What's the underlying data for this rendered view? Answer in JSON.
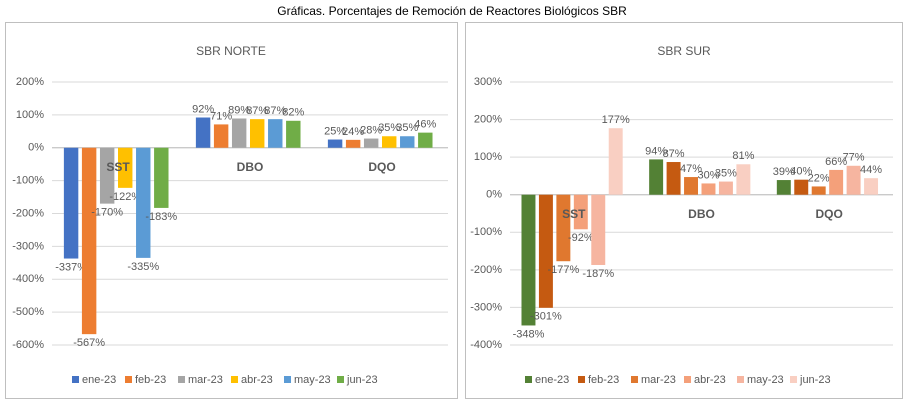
{
  "title": "Gráficas. Porcentajes de Remoción de Reactores Biológicos SBR",
  "chart_data": [
    {
      "type": "bar",
      "title": "SBR NORTE",
      "categories": [
        "SST",
        "DBO",
        "DQO"
      ],
      "series": [
        {
          "name": "ene-23",
          "color": "#4472c4",
          "values": [
            -337,
            92,
            25
          ],
          "value_labels": [
            "-337%",
            "92%",
            "25%"
          ]
        },
        {
          "name": "feb-23",
          "color": "#ed7d31",
          "values": [
            -567,
            71,
            24
          ],
          "value_labels": [
            "-567%",
            "71%",
            "24%"
          ]
        },
        {
          "name": "mar-23",
          "color": "#a5a5a5",
          "values": [
            -170,
            89,
            28
          ],
          "value_labels": [
            "-170%",
            "89%",
            "28%"
          ]
        },
        {
          "name": "abr-23",
          "color": "#ffc000",
          "values": [
            -122,
            87,
            35
          ],
          "value_labels": [
            "-122%",
            "87%",
            "35%"
          ]
        },
        {
          "name": "may-23",
          "color": "#5b9bd5",
          "values": [
            -335,
            87,
            35
          ],
          "value_labels": [
            "-335%",
            "87%",
            "35%"
          ]
        },
        {
          "name": "jun-23",
          "color": "#70ad47",
          "values": [
            -183,
            82,
            46
          ],
          "value_labels": [
            "-183%",
            "82%",
            "46%"
          ]
        }
      ],
      "ylim": [
        -600,
        200
      ],
      "yticks": [
        {
          "value": 200,
          "label": "200%"
        },
        {
          "value": 100,
          "label": "100%"
        },
        {
          "value": 0,
          "label": "0%"
        },
        {
          "value": -100,
          "label": "-100%"
        },
        {
          "value": -200,
          "label": "-200%"
        },
        {
          "value": -300,
          "label": "-300%"
        },
        {
          "value": -400,
          "label": "-400%"
        },
        {
          "value": -500,
          "label": "-500%"
        },
        {
          "value": -600,
          "label": "-600%"
        }
      ],
      "grid": true,
      "legend": "bottom"
    },
    {
      "type": "bar",
      "title": "SBR SUR",
      "categories": [
        "SST",
        "DBO",
        "DQO"
      ],
      "series": [
        {
          "name": "ene-23",
          "color": "#538135",
          "values": [
            -348,
            94,
            39
          ],
          "value_labels": [
            "-348%",
            "94%",
            "39%"
          ]
        },
        {
          "name": "feb-23",
          "color": "#c55a11",
          "values": [
            -301,
            87,
            40
          ],
          "value_labels": [
            "-301%",
            "87%",
            "40%"
          ]
        },
        {
          "name": "mar-23",
          "color": "#e0782f",
          "values": [
            -177,
            47,
            22
          ],
          "value_labels": [
            "-177%",
            "47%",
            "22%"
          ]
        },
        {
          "name": "abr-23",
          "color": "#f4a07a",
          "values": [
            -92,
            30,
            66
          ],
          "value_labels": [
            "-92%",
            "30%",
            "66%"
          ]
        },
        {
          "name": "may-23",
          "color": "#f6b5a0",
          "values": [
            -187,
            35,
            77
          ],
          "value_labels": [
            "-187%",
            "35%",
            "77%"
          ]
        },
        {
          "name": "jun-23",
          "color": "#f9cfc2",
          "values": [
            177,
            81,
            44
          ],
          "value_labels": [
            "177%",
            "81%",
            "44%"
          ]
        }
      ],
      "ylim": [
        -400,
        300
      ],
      "yticks": [
        {
          "value": 300,
          "label": "300%"
        },
        {
          "value": 200,
          "label": "200%"
        },
        {
          "value": 100,
          "label": "100%"
        },
        {
          "value": 0,
          "label": "0%"
        },
        {
          "value": -100,
          "label": "-100%"
        },
        {
          "value": -200,
          "label": "-200%"
        },
        {
          "value": -300,
          "label": "-300%"
        },
        {
          "value": -400,
          "label": "-400%"
        }
      ],
      "grid": true,
      "legend": "bottom"
    }
  ]
}
